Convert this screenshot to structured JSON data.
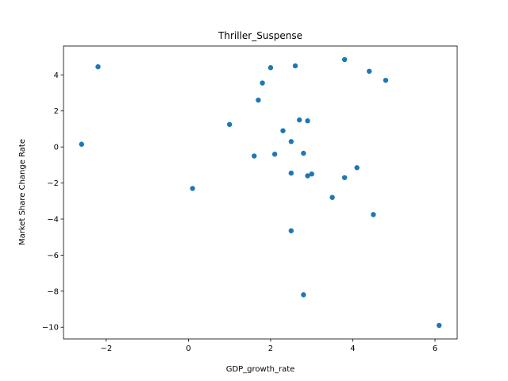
{
  "chart_data": {
    "type": "scatter",
    "title": "Thriller_Suspense",
    "xlabel": "GDP_growth_rate",
    "ylabel": "Market Share Change Rate",
    "xlim": [
      -3.04,
      6.54
    ],
    "ylim": [
      -10.65,
      5.6
    ],
    "xticks": [
      -2,
      0,
      2,
      4,
      6
    ],
    "yticks": [
      -10,
      -8,
      -6,
      -4,
      -2,
      0,
      2,
      4
    ],
    "grid": false,
    "marker_color": "#1f77b4",
    "points": [
      {
        "x": -2.6,
        "y": 0.15
      },
      {
        "x": -2.2,
        "y": 4.45
      },
      {
        "x": 0.1,
        "y": -2.3
      },
      {
        "x": 1.0,
        "y": 1.25
      },
      {
        "x": 1.6,
        "y": -0.5
      },
      {
        "x": 1.7,
        "y": 2.6
      },
      {
        "x": 1.8,
        "y": 3.55
      },
      {
        "x": 2.0,
        "y": 4.4
      },
      {
        "x": 2.1,
        "y": -0.4
      },
      {
        "x": 2.3,
        "y": 0.9
      },
      {
        "x": 2.5,
        "y": 0.3
      },
      {
        "x": 2.5,
        "y": -1.45
      },
      {
        "x": 2.5,
        "y": -4.65
      },
      {
        "x": 2.6,
        "y": 4.5
      },
      {
        "x": 2.7,
        "y": 1.5
      },
      {
        "x": 2.8,
        "y": -0.35
      },
      {
        "x": 2.8,
        "y": -8.2
      },
      {
        "x": 2.9,
        "y": 1.45
      },
      {
        "x": 2.9,
        "y": -1.6
      },
      {
        "x": 3.0,
        "y": -1.5
      },
      {
        "x": 3.5,
        "y": -2.8
      },
      {
        "x": 3.8,
        "y": 4.85
      },
      {
        "x": 3.8,
        "y": -1.7
      },
      {
        "x": 4.1,
        "y": -1.15
      },
      {
        "x": 4.4,
        "y": 4.2
      },
      {
        "x": 4.5,
        "y": -3.75
      },
      {
        "x": 4.8,
        "y": 3.7
      },
      {
        "x": 6.1,
        "y": -9.9
      }
    ]
  }
}
